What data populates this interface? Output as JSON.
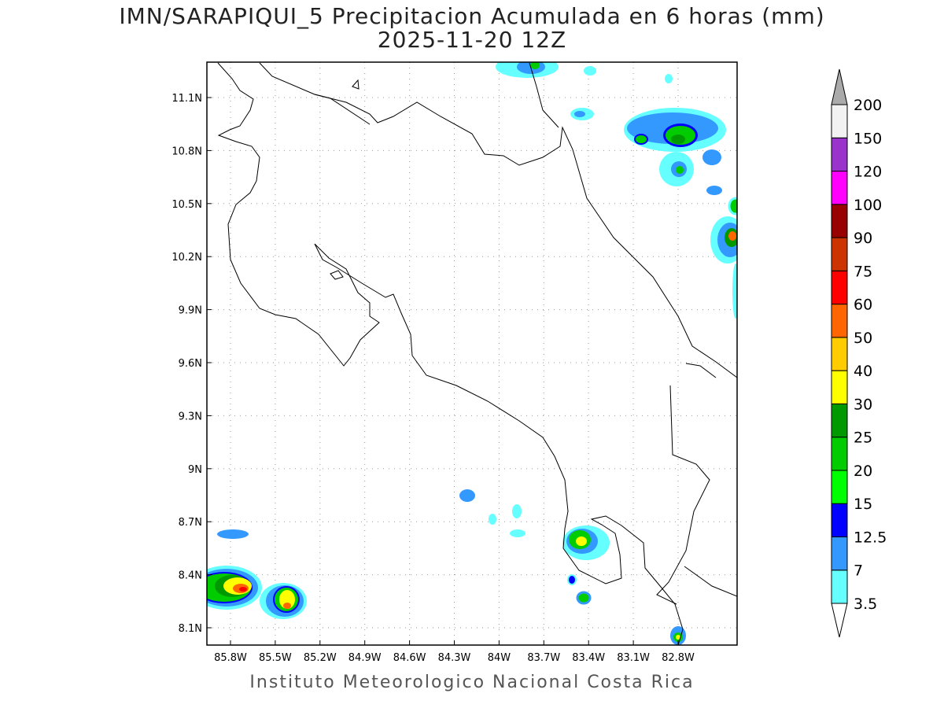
{
  "title": "IMN/SARAPIQUI_5 Precipitacion Acumulada en 6 horas (mm)",
  "subtitle": "2025-11-20 12Z",
  "footer": "Instituto Meteorologico Nacional Costa Rica",
  "map": {
    "region": "Costa Rica",
    "lon_range": [
      -85.95,
      -82.42
    ],
    "lat_range": [
      8.0,
      11.3
    ],
    "x_ticks": [
      "85.8W",
      "85.5W",
      "85.2W",
      "84.9W",
      "84.6W",
      "84.3W",
      "84W",
      "83.7W",
      "83.4W",
      "83.1W",
      "82.8W"
    ],
    "y_ticks": [
      "11.1N",
      "10.8N",
      "10.5N",
      "10.2N",
      "9.9N",
      "9.6N",
      "9.3N",
      "9N",
      "8.7N",
      "8.4N",
      "8.1N"
    ],
    "grid": "dotted"
  },
  "colorbar": {
    "labels": [
      "3.5",
      "7",
      "12.5",
      "15",
      "20",
      "25",
      "30",
      "40",
      "50",
      "60",
      "75",
      "90",
      "100",
      "120",
      "150",
      "200"
    ],
    "colors": [
      "#66ffff",
      "#3399ff",
      "#0000ff",
      "#00ff00",
      "#00cc00",
      "#009900",
      "#ffff00",
      "#ffcc00",
      "#ff6600",
      "#ff0000",
      "#cc3300",
      "#990000",
      "#ff00ff",
      "#9933cc",
      "#f2f2f2"
    ],
    "under_color": "#ffffff",
    "over_color": "#aaaaaa"
  }
}
